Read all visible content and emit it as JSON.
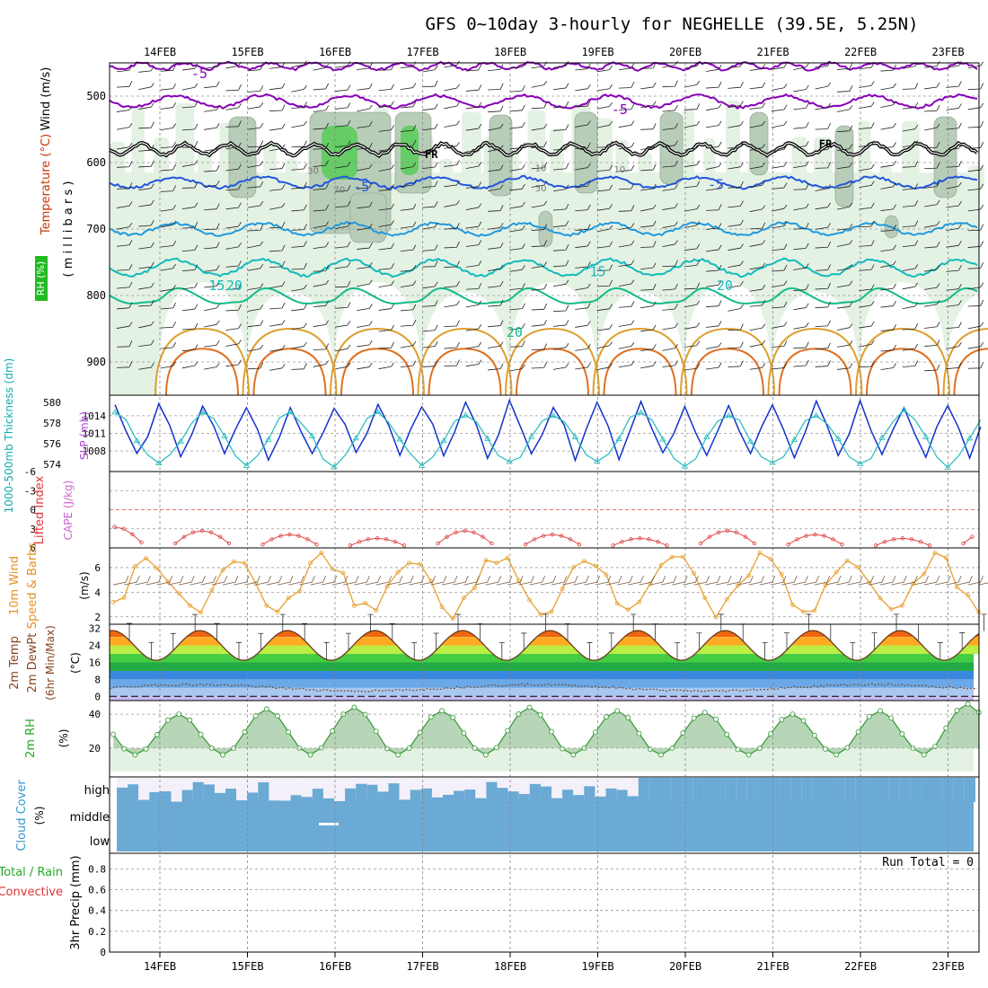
{
  "chart_data": {
    "type": "meteogram",
    "title": "GFS 0~10day 3-hourly for NEGHELLE (39.5E, 5.25N)",
    "dates": [
      "14FEB",
      "15FEB",
      "16FEB",
      "17FEB",
      "18FEB",
      "19FEB",
      "20FEB",
      "21FEB",
      "22FEB",
      "23FEB"
    ],
    "colors": {
      "purple": "#8800b8",
      "blue": "#2255dd",
      "sky": "#2299dd",
      "teal": "#11bbbb",
      "green": "#11bb88",
      "gold": "#dda030",
      "orange": "#e07020",
      "rhLight": "#e4f2e4",
      "rhMid": "#b8cdb8",
      "rhDark": "#8fa38f",
      "rhBright": "#66cc66",
      "cloud": "#6aaad4",
      "cloudLow": "#f4f0fa",
      "slp": "#1133cc",
      "thick": "#22bbbb",
      "cape": "#dd4444",
      "wind": "#e8a030",
      "barb": "#7a5a40",
      "rh2m": "#339933"
    },
    "upper_air": {
      "ylabel_wind": "Wind (m/s)",
      "ylabel_temp": "Temperature (°C)",
      "ylabel_mb": "( m i l l i b a r s )",
      "rh_label": "RH (%)",
      "pressure_levels": [
        500,
        600,
        700,
        800,
        900
      ],
      "pressure_range": [
        450,
        950
      ],
      "isotherm_labels": [
        {
          "text": "-5",
          "p": 473,
          "day": 0.45,
          "color": "purple"
        },
        {
          "text": "-5",
          "p": 527,
          "day": 5.25,
          "color": "purple"
        },
        {
          "text": "FR",
          "p": 593,
          "day": 3.1,
          "color": "black"
        },
        {
          "text": "FR",
          "p": 578,
          "day": 7.6,
          "color": "black"
        },
        {
          "text": "-5",
          "p": 643,
          "day": 2.3,
          "color": "blue"
        },
        {
          "text": "-5",
          "p": 640,
          "day": 6.35,
          "color": "blue"
        },
        {
          "text": "15",
          "p": 792,
          "day": 0.65,
          "color": "teal"
        },
        {
          "text": "20",
          "p": 792,
          "day": 0.85,
          "color": "teal"
        },
        {
          "text": "15",
          "p": 771,
          "day": 5.0,
          "color": "teal"
        },
        {
          "text": "20",
          "p": 792,
          "day": 6.45,
          "color": "teal"
        },
        {
          "text": "20",
          "p": 862,
          "day": 4.05,
          "color": "green"
        }
      ],
      "rh_labels": [
        {
          "text": "30",
          "p": 617,
          "day": 1.75
        },
        {
          "text": "70",
          "p": 645,
          "day": 2.05
        },
        {
          "text": "10",
          "p": 613,
          "day": 4.35
        },
        {
          "text": "30",
          "p": 643,
          "day": 4.35
        },
        {
          "text": "10",
          "p": 615,
          "day": 5.25
        }
      ]
    },
    "slp_panel": {
      "ylabel": "1000-500mb Thickness (dm)",
      "ylabel2": "SLP (mb)",
      "thickness_ticks": [
        574,
        576,
        578,
        580
      ],
      "slp_ticks": [
        1008,
        1011,
        1014
      ],
      "slp_range": [
        1004.5,
        1017.5
      ],
      "thick_range": [
        573.3,
        580.7
      ],
      "slp_period_mean": 1011.5,
      "slp_amp": 4.5
    },
    "cape_panel": {
      "ylabel": "Lifted Index",
      "ylabel2": "CAPE (J/kg)",
      "ticks": [
        "-6",
        "-3",
        "0",
        "3",
        "6"
      ],
      "li_values_range": [
        3.3,
        6.0
      ]
    },
    "wind10m_panel": {
      "ylabel": "10m Wind",
      "ylabel2": "Speed & Barbs",
      "unit": "(m/s)",
      "ticks": [
        2,
        4,
        6
      ],
      "range": [
        1.4,
        7.6
      ]
    },
    "temp2m_panel": {
      "ylabel": "2m Temp",
      "ylabel2": "2m DewPt",
      "ylabel3": "(6hr Min/Max)",
      "unit": "(°C)",
      "ticks": [
        0,
        8,
        16,
        24,
        32
      ],
      "range": [
        -2,
        34
      ],
      "tmin": 17,
      "tmax": 31,
      "dewpt": 4
    },
    "rh2m_panel": {
      "ylabel": "2m RH",
      "unit": "(%)",
      "ticks": [
        20,
        40
      ],
      "range": [
        3,
        48
      ],
      "daily_min": 16,
      "daily_max": [
        40,
        43,
        44,
        42,
        44,
        42,
        41,
        40,
        42,
        46
      ]
    },
    "cloud_panel": {
      "ylabel": "Cloud Cover",
      "unit": "(%)",
      "levels": [
        "high",
        "middle",
        "low"
      ]
    },
    "precip_panel": {
      "ylabel": "3hr Precip (mm)",
      "legend1": "Total / Rain",
      "legend2": "Convective",
      "ticks": [
        0,
        0.2,
        0.4,
        0.6,
        0.8
      ],
      "range": [
        0,
        0.95
      ],
      "run_total_label": "Run Total = 0"
    }
  }
}
